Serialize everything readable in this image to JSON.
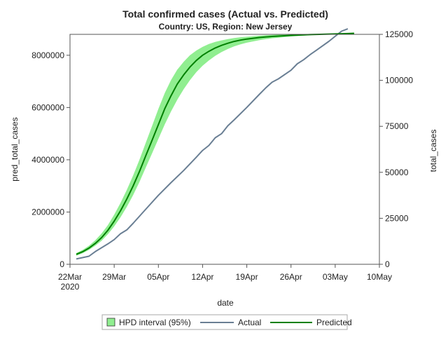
{
  "chart_data": {
    "type": "area",
    "title": "Total confirmed cases (Actual vs. Predicted)",
    "subtitle": "Country: US, Region: New Jersey",
    "xlabel": "date",
    "ylabel_left": "pred_total_cases",
    "ylabel_right": "total_cases",
    "xlim": [
      "2020-03-22",
      "2020-05-10"
    ],
    "ylim_left": [
      0,
      8800000
    ],
    "ylim_right": [
      0,
      125000
    ],
    "x_ticks": [
      {
        "date": "2020-03-22",
        "label": "22Mar",
        "sublabel": "2020"
      },
      {
        "date": "2020-03-29",
        "label": "29Mar"
      },
      {
        "date": "2020-04-05",
        "label": "05Apr"
      },
      {
        "date": "2020-04-12",
        "label": "12Apr"
      },
      {
        "date": "2020-04-19",
        "label": "19Apr"
      },
      {
        "date": "2020-04-26",
        "label": "26Apr"
      },
      {
        "date": "2020-05-03",
        "label": "03May"
      },
      {
        "date": "2020-05-10",
        "label": "10May"
      }
    ],
    "y_ticks_left": [
      {
        "value": 0,
        "label": "0"
      },
      {
        "value": 2000000,
        "label": "2000000"
      },
      {
        "value": 4000000,
        "label": "4000000"
      },
      {
        "value": 6000000,
        "label": "6000000"
      },
      {
        "value": 8000000,
        "label": "8000000"
      }
    ],
    "y_ticks_right": [
      {
        "value": 0,
        "label": "0"
      },
      {
        "value": 25000,
        "label": "25000"
      },
      {
        "value": 50000,
        "label": "50000"
      },
      {
        "value": 75000,
        "label": "75000"
      },
      {
        "value": 100000,
        "label": "100000"
      },
      {
        "value": 125000,
        "label": "125000"
      }
    ],
    "grid": false,
    "legend_position": "bottom",
    "legend": [
      {
        "label": "HPD interval (95%)",
        "kind": "band"
      },
      {
        "label": "Actual",
        "kind": "line"
      },
      {
        "label": "Predicted",
        "kind": "line"
      }
    ],
    "colors": {
      "band": "#90ee90",
      "predicted": "#008000",
      "actual": "#6a7f94"
    },
    "series": [
      {
        "name": "Predicted",
        "axis": "left",
        "x": [
          "2020-03-23",
          "2020-03-24",
          "2020-03-25",
          "2020-03-26",
          "2020-03-27",
          "2020-03-28",
          "2020-03-29",
          "2020-03-30",
          "2020-03-31",
          "2020-04-01",
          "2020-04-02",
          "2020-04-03",
          "2020-04-04",
          "2020-04-05",
          "2020-04-06",
          "2020-04-07",
          "2020-04-08",
          "2020-04-09",
          "2020-04-10",
          "2020-04-11",
          "2020-04-12",
          "2020-04-13",
          "2020-04-14",
          "2020-04-15",
          "2020-04-16",
          "2020-04-17",
          "2020-04-18",
          "2020-04-19",
          "2020-04-21",
          "2020-04-23",
          "2020-04-26",
          "2020-04-29",
          "2020-05-02",
          "2020-05-05",
          "2020-05-06"
        ],
        "y": [
          380000,
          480000,
          620000,
          800000,
          1020000,
          1300000,
          1650000,
          2050000,
          2500000,
          3000000,
          3550000,
          4150000,
          4750000,
          5350000,
          5950000,
          6450000,
          6900000,
          7250000,
          7550000,
          7800000,
          8000000,
          8150000,
          8280000,
          8380000,
          8460000,
          8530000,
          8580000,
          8620000,
          8680000,
          8720000,
          8760000,
          8790000,
          8810000,
          8830000,
          8840000
        ]
      },
      {
        "name": "HPD interval (95%)",
        "axis": "left",
        "x": [
          "2020-03-23",
          "2020-03-24",
          "2020-03-25",
          "2020-03-26",
          "2020-03-27",
          "2020-03-28",
          "2020-03-29",
          "2020-03-30",
          "2020-03-31",
          "2020-04-01",
          "2020-04-02",
          "2020-04-03",
          "2020-04-04",
          "2020-04-05",
          "2020-04-06",
          "2020-04-07",
          "2020-04-08",
          "2020-04-09",
          "2020-04-10",
          "2020-04-11",
          "2020-04-12",
          "2020-04-13",
          "2020-04-14",
          "2020-04-15",
          "2020-04-16",
          "2020-04-17",
          "2020-04-18",
          "2020-04-19",
          "2020-04-21",
          "2020-04-23",
          "2020-04-26",
          "2020-04-29",
          "2020-05-02",
          "2020-05-05",
          "2020-05-06"
        ],
        "lower": [
          330000,
          420000,
          550000,
          710000,
          900000,
          1150000,
          1450000,
          1800000,
          2200000,
          2650000,
          3150000,
          3700000,
          4250000,
          4800000,
          5350000,
          5850000,
          6300000,
          6700000,
          7050000,
          7350000,
          7600000,
          7800000,
          7980000,
          8120000,
          8240000,
          8340000,
          8420000,
          8480000,
          8580000,
          8650000,
          8720000,
          8770000,
          8800000,
          8820000,
          8840000
        ],
        "upper": [
          430000,
          550000,
          710000,
          920000,
          1180000,
          1500000,
          1900000,
          2350000,
          2850000,
          3400000,
          4000000,
          4650000,
          5300000,
          5950000,
          6550000,
          7050000,
          7450000,
          7750000,
          8000000,
          8180000,
          8320000,
          8430000,
          8510000,
          8570000,
          8620000,
          8660000,
          8690000,
          8710000,
          8750000,
          8780000,
          8800000,
          8820000,
          8830000,
          8840000,
          8840000
        ]
      },
      {
        "name": "Actual",
        "axis": "right",
        "x": [
          "2020-03-23",
          "2020-03-25",
          "2020-03-26",
          "2020-03-28",
          "2020-03-29",
          "2020-03-30",
          "2020-03-31",
          "2020-04-01",
          "2020-04-03",
          "2020-04-05",
          "2020-04-07",
          "2020-04-09",
          "2020-04-11",
          "2020-04-12",
          "2020-04-13",
          "2020-04-14",
          "2020-04-15",
          "2020-04-16",
          "2020-04-17",
          "2020-04-19",
          "2020-04-21",
          "2020-04-22",
          "2020-04-23",
          "2020-04-24",
          "2020-04-26",
          "2020-04-27",
          "2020-04-28",
          "2020-04-29",
          "2020-04-30",
          "2020-05-02",
          "2020-05-04",
          "2020-05-05"
        ],
        "y": [
          2900,
          4400,
          6900,
          11100,
          13400,
          16600,
          18700,
          22300,
          29900,
          37500,
          44400,
          51000,
          58200,
          61900,
          64600,
          68800,
          71000,
          75300,
          78500,
          85300,
          92400,
          95900,
          99000,
          100800,
          105500,
          109000,
          111200,
          113900,
          116300,
          121200,
          126700,
          128000
        ]
      }
    ]
  }
}
